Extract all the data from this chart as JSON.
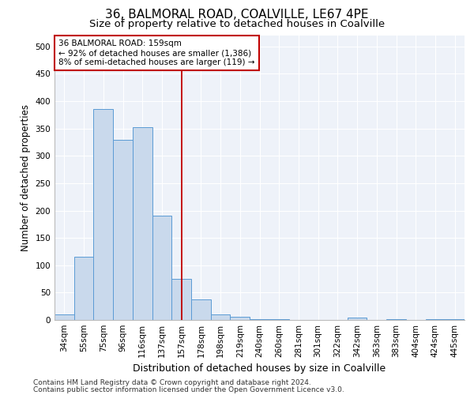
{
  "title1": "36, BALMORAL ROAD, COALVILLE, LE67 4PE",
  "title2": "Size of property relative to detached houses in Coalville",
  "xlabel": "Distribution of detached houses by size in Coalville",
  "ylabel": "Number of detached properties",
  "categories": [
    "34sqm",
    "55sqm",
    "75sqm",
    "96sqm",
    "116sqm",
    "137sqm",
    "157sqm",
    "178sqm",
    "198sqm",
    "219sqm",
    "240sqm",
    "260sqm",
    "281sqm",
    "301sqm",
    "322sqm",
    "342sqm",
    "363sqm",
    "383sqm",
    "404sqm",
    "424sqm",
    "445sqm"
  ],
  "values": [
    10,
    115,
    385,
    330,
    352,
    190,
    75,
    37,
    10,
    6,
    2,
    2,
    0,
    0,
    0,
    4,
    0,
    2,
    0,
    2,
    2
  ],
  "bar_color": "#c9d9ec",
  "bar_edge_color": "#5b9bd5",
  "vline_x_index": 6,
  "vline_color": "#c00000",
  "annotation_text": "36 BALMORAL ROAD: 159sqm\n← 92% of detached houses are smaller (1,386)\n8% of semi-detached houses are larger (119) →",
  "annotation_box_color": "#c00000",
  "ylim": [
    0,
    520
  ],
  "yticks": [
    0,
    50,
    100,
    150,
    200,
    250,
    300,
    350,
    400,
    450,
    500
  ],
  "footer1": "Contains HM Land Registry data © Crown copyright and database right 2024.",
  "footer2": "Contains public sector information licensed under the Open Government Licence v3.0.",
  "background_color": "#eef2f9",
  "title1_fontsize": 11,
  "title2_fontsize": 9.5,
  "xlabel_fontsize": 9,
  "ylabel_fontsize": 8.5,
  "tick_fontsize": 7.5,
  "annotation_fontsize": 7.5,
  "footer_fontsize": 6.5
}
